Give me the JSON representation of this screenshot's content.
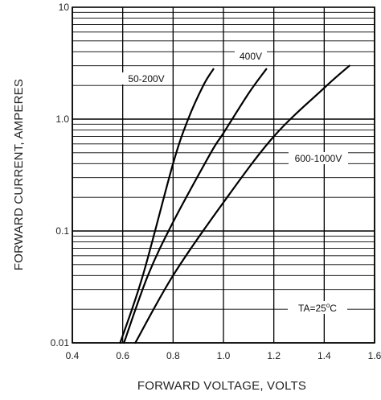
{
  "chart_data": {
    "type": "line",
    "title": "",
    "xlabel": "FORWARD VOLTAGE, VOLTS",
    "ylabel": "FORWARD CURRENT, AMPERES",
    "x_range": [
      0.4,
      1.6
    ],
    "y_range": [
      0.01,
      10
    ],
    "y_scale": "log",
    "grid": true,
    "x_tick_labels": [
      "0.4",
      "0.6",
      "0.8",
      "1.0",
      "1.2",
      "1.4",
      "1.6"
    ],
    "y_tick_labels": [
      "0.01",
      "0.1",
      "1.0",
      "10"
    ],
    "series": [
      {
        "name": "50-200V",
        "x": [
          0.59,
          0.68,
          0.8,
          0.86,
          0.92,
          0.96
        ],
        "y": [
          0.01,
          0.04,
          0.4,
          1.0,
          2.0,
          2.8
        ]
      },
      {
        "name": "400V",
        "x": [
          0.605,
          0.7,
          0.8,
          0.95,
          1.0,
          1.1,
          1.17
        ],
        "y": [
          0.01,
          0.04,
          0.12,
          0.5,
          0.75,
          1.7,
          2.8
        ]
      },
      {
        "name": "600-1000V",
        "x": [
          0.65,
          0.8,
          1.0,
          1.2,
          1.4,
          1.5
        ],
        "y": [
          0.01,
          0.04,
          0.18,
          0.7,
          1.9,
          3.0
        ]
      }
    ],
    "annotation": {
      "prefix": "TA=25",
      "sup": "o",
      "suffix": "C"
    }
  }
}
